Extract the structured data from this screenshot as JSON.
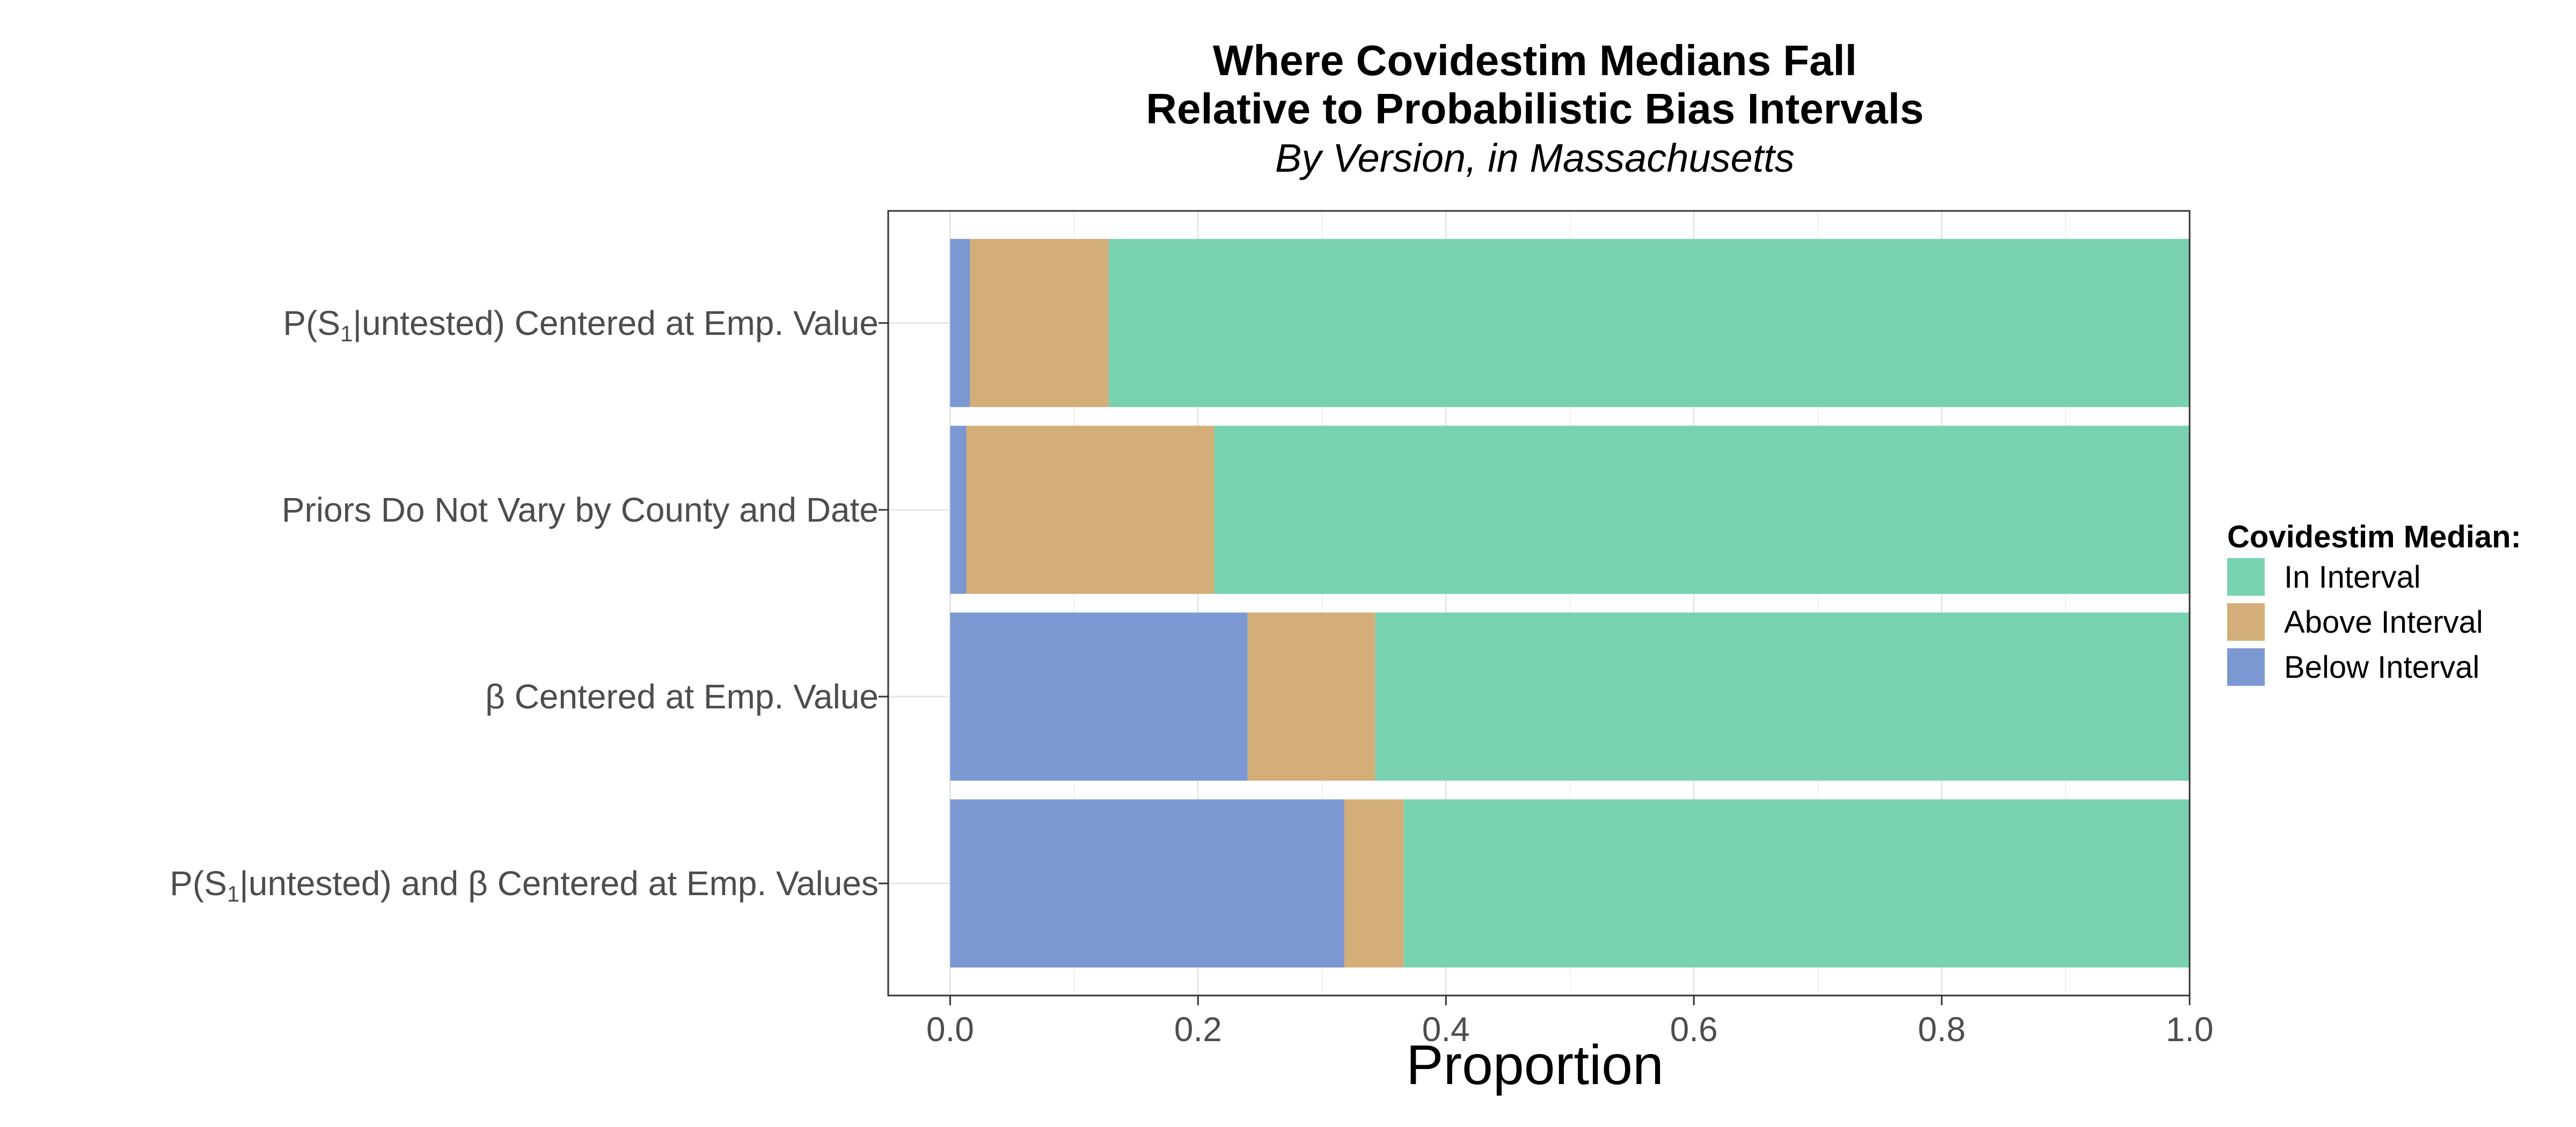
{
  "chart_data": {
    "type": "bar",
    "orientation": "horizontal",
    "stacked": true,
    "title_lines": [
      "Where Covidestim Medians Fall",
      "Relative to Probabilistic Bias Intervals"
    ],
    "subtitle": "By Version, in Massachusetts",
    "xlabel": "Proportion",
    "ylabel": "",
    "xlim": [
      -0.05,
      1.0
    ],
    "xticks": [
      "0.0",
      "0.2",
      "0.4",
      "0.6",
      "0.8",
      "1.0"
    ],
    "grid": true,
    "legend_position": "right",
    "legend_title": "Covidestim Median:",
    "categories": [
      "P(S1|untested) Centered at Emp. Value",
      "Priors Do Not Vary by County and Date",
      "β Centered at Emp. Value",
      "P(S1|untested) and β Centered at Emp. Values"
    ],
    "series": [
      {
        "name": "Below Interval",
        "color": "#7b98d3",
        "values": [
          0.016,
          0.013,
          0.24,
          0.318
        ]
      },
      {
        "name": "Above Interval",
        "color": "#d3ae78",
        "values": [
          0.112,
          0.2,
          0.103,
          0.048
        ]
      },
      {
        "name": "In Interval",
        "color": "#78d2b0",
        "values": [
          0.872,
          0.787,
          0.657,
          0.634
        ]
      }
    ],
    "legend_order": [
      "In Interval",
      "Above Interval",
      "Below Interval"
    ]
  }
}
